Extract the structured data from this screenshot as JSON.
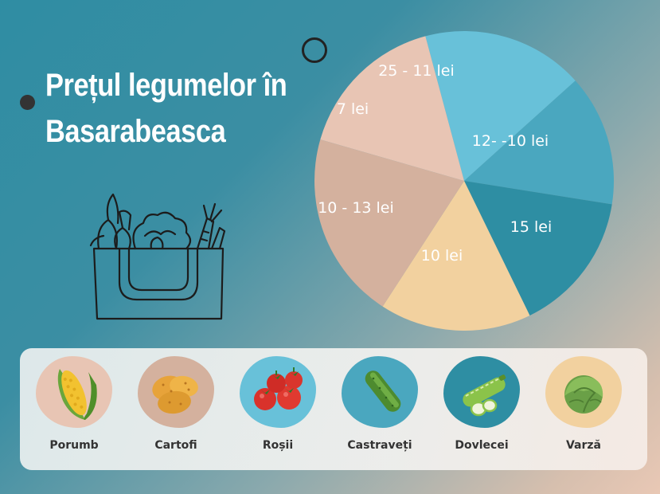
{
  "title": {
    "line1": "Prețul legumelor în",
    "line2": "Basarabeasca"
  },
  "pie_slices": [
    {
      "label": "25 - 11 lei",
      "color": "#68c1d9"
    },
    {
      "label": "12- -10 lei",
      "color": "#4aa7bf"
    },
    {
      "label": "15 lei",
      "color": "#2e8ea3"
    },
    {
      "label": "10 lei",
      "color": "#f2d19f"
    },
    {
      "label": "10 - 13 lei",
      "color": "#d4b19e"
    },
    {
      "label": "7 lei",
      "color": "#e8c5b4"
    }
  ],
  "vegetables": [
    {
      "name": "Porumb",
      "icon": "corn-icon",
      "blob_color": "#e8c5b4"
    },
    {
      "name": "Cartofi",
      "icon": "potato-icon",
      "blob_color": "#d4b19e"
    },
    {
      "name": "Roșii",
      "icon": "tomato-icon",
      "blob_color": "#68c1d9"
    },
    {
      "name": "Castraveți",
      "icon": "cucumber-icon",
      "blob_color": "#4aa7bf"
    },
    {
      "name": "Dovlecei",
      "icon": "zucchini-icon",
      "blob_color": "#2e8ea3"
    },
    {
      "name": "Varză",
      "icon": "cabbage-icon",
      "blob_color": "#f2d19f"
    }
  ]
}
